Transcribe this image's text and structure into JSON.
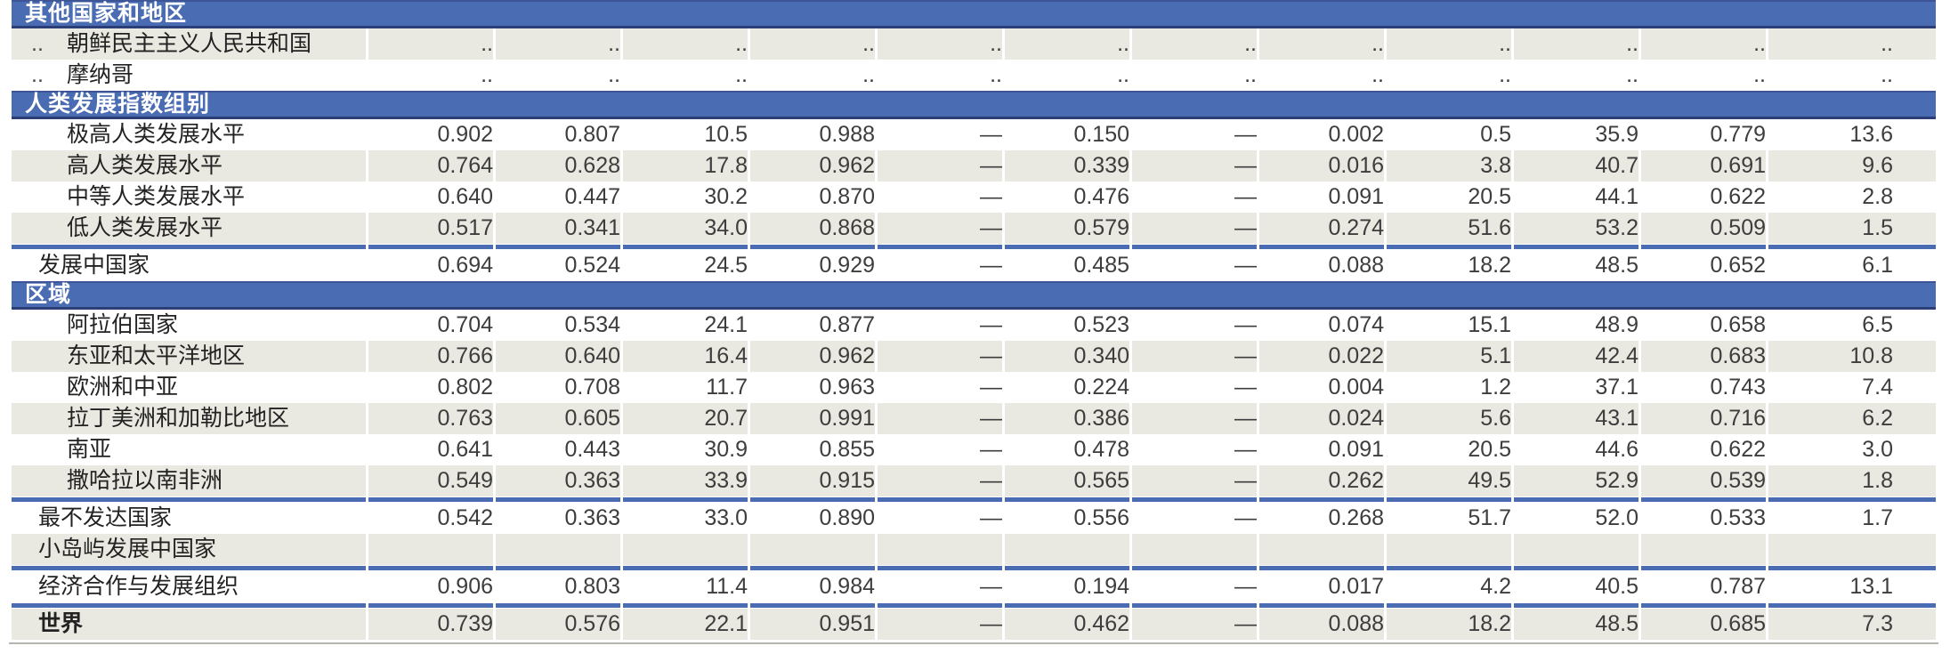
{
  "colors": {
    "section_bar": "#4a6cb3",
    "section_bar_border_top": "#3d5596",
    "section_bar_border_bottom": "#2c3e78",
    "separator_line": "#4a6cb3",
    "row_shade": "#e9e8e1",
    "row_plain": "#ffffff",
    "label_text": "#222222",
    "value_text": "#3d3d3d",
    "section_text": "#ffffff",
    "bottom_rule": "#b5b5af"
  },
  "table": {
    "num_value_columns": 12,
    "no_data_symbol": "..",
    "not_applicable_symbol": "—",
    "rows": [
      {
        "type": "section",
        "label": "其他国家和地区"
      },
      {
        "type": "data",
        "indent": "country",
        "shade": true,
        "rank": "..",
        "label": "朝鲜民主主义人民共和国",
        "values": [
          "..",
          "..",
          "..",
          "..",
          "..",
          "..",
          "..",
          "..",
          "..",
          "..",
          "..",
          ".."
        ]
      },
      {
        "type": "data",
        "indent": "country",
        "shade": false,
        "rank": "..",
        "label": "摩纳哥",
        "values": [
          "..",
          "..",
          "..",
          "..",
          "..",
          "..",
          "..",
          "..",
          "..",
          "..",
          "..",
          ".."
        ]
      },
      {
        "type": "section",
        "label": "人类发展指数组别"
      },
      {
        "type": "data",
        "indent": "sub",
        "shade": false,
        "label": "极高人类发展水平",
        "values": [
          "0.902",
          "0.807",
          "10.5",
          "0.988",
          "—",
          "0.150",
          "—",
          "0.002",
          "0.5",
          "35.9",
          "0.779",
          "13.6"
        ]
      },
      {
        "type": "data",
        "indent": "sub",
        "shade": true,
        "label": "高人类发展水平",
        "values": [
          "0.764",
          "0.628",
          "17.8",
          "0.962",
          "—",
          "0.339",
          "—",
          "0.016",
          "3.8",
          "40.7",
          "0.691",
          "9.6"
        ]
      },
      {
        "type": "data",
        "indent": "sub",
        "shade": false,
        "label": "中等人类发展水平",
        "values": [
          "0.640",
          "0.447",
          "30.2",
          "0.870",
          "—",
          "0.476",
          "—",
          "0.091",
          "20.5",
          "44.1",
          "0.622",
          "2.8"
        ]
      },
      {
        "type": "data",
        "indent": "sub",
        "shade": true,
        "label": "低人类发展水平",
        "values": [
          "0.517",
          "0.341",
          "34.0",
          "0.868",
          "—",
          "0.579",
          "—",
          "0.274",
          "51.6",
          "53.2",
          "0.509",
          "1.5"
        ]
      },
      {
        "type": "separator"
      },
      {
        "type": "data",
        "indent": "top",
        "shade": false,
        "label": "发展中国家",
        "values": [
          "0.694",
          "0.524",
          "24.5",
          "0.929",
          "—",
          "0.485",
          "—",
          "0.088",
          "18.2",
          "48.5",
          "0.652",
          "6.1"
        ]
      },
      {
        "type": "section",
        "label": "区域"
      },
      {
        "type": "data",
        "indent": "sub",
        "shade": false,
        "label": "阿拉伯国家",
        "values": [
          "0.704",
          "0.534",
          "24.1",
          "0.877",
          "—",
          "0.523",
          "—",
          "0.074",
          "15.1",
          "48.9",
          "0.658",
          "6.5"
        ]
      },
      {
        "type": "data",
        "indent": "sub",
        "shade": true,
        "label": "东亚和太平洋地区",
        "values": [
          "0.766",
          "0.640",
          "16.4",
          "0.962",
          "—",
          "0.340",
          "—",
          "0.022",
          "5.1",
          "42.4",
          "0.683",
          "10.8"
        ]
      },
      {
        "type": "data",
        "indent": "sub",
        "shade": false,
        "label": "欧洲和中亚",
        "values": [
          "0.802",
          "0.708",
          "11.7",
          "0.963",
          "—",
          "0.224",
          "—",
          "0.004",
          "1.2",
          "37.1",
          "0.743",
          "7.4"
        ]
      },
      {
        "type": "data",
        "indent": "sub",
        "shade": true,
        "label": "拉丁美洲和加勒比地区",
        "values": [
          "0.763",
          "0.605",
          "20.7",
          "0.991",
          "—",
          "0.386",
          "—",
          "0.024",
          "5.6",
          "43.1",
          "0.716",
          "6.2"
        ]
      },
      {
        "type": "data",
        "indent": "sub",
        "shade": false,
        "label": "南亚",
        "values": [
          "0.641",
          "0.443",
          "30.9",
          "0.855",
          "—",
          "0.478",
          "—",
          "0.091",
          "20.5",
          "44.6",
          "0.622",
          "3.0"
        ]
      },
      {
        "type": "data",
        "indent": "sub",
        "shade": true,
        "label": "撒哈拉以南非洲",
        "values": [
          "0.549",
          "0.363",
          "33.9",
          "0.915",
          "—",
          "0.565",
          "—",
          "0.262",
          "49.5",
          "52.9",
          "0.539",
          "1.8"
        ]
      },
      {
        "type": "separator"
      },
      {
        "type": "data",
        "indent": "top",
        "shade": false,
        "label": "最不发达国家",
        "values": [
          "0.542",
          "0.363",
          "33.0",
          "0.890",
          "—",
          "0.556",
          "—",
          "0.268",
          "51.7",
          "52.0",
          "0.533",
          "1.7"
        ]
      },
      {
        "type": "data",
        "indent": "top",
        "shade": true,
        "label": "小岛屿发展中国家",
        "values": [
          "",
          "",
          "",
          "",
          "",
          "",
          "",
          "",
          "",
          "",
          "",
          ""
        ]
      },
      {
        "type": "separator"
      },
      {
        "type": "data",
        "indent": "top",
        "shade": false,
        "label": "经济合作与发展组织",
        "values": [
          "0.906",
          "0.803",
          "11.4",
          "0.984",
          "—",
          "0.194",
          "—",
          "0.017",
          "4.2",
          "40.5",
          "0.787",
          "13.1"
        ]
      },
      {
        "type": "separator"
      },
      {
        "type": "data",
        "indent": "top",
        "shade": true,
        "bold": true,
        "label": "世界",
        "values": [
          "0.739",
          "0.576",
          "22.1",
          "0.951",
          "—",
          "0.462",
          "—",
          "0.088",
          "18.2",
          "48.5",
          "0.685",
          "7.3"
        ]
      }
    ]
  }
}
